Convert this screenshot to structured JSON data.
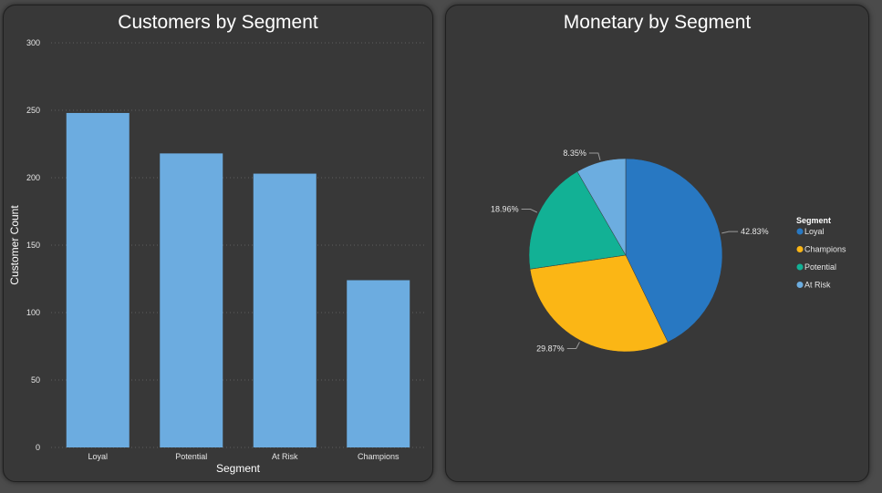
{
  "chart_data": [
    {
      "type": "bar",
      "title": "Customers by Segment",
      "xlabel": "Segment",
      "ylabel": "Customer Count",
      "categories": [
        "Loyal",
        "Potential",
        "At Risk",
        "Champions"
      ],
      "values": [
        248,
        218,
        203,
        124
      ],
      "ylim": [
        0,
        300
      ],
      "yticks": [
        "0",
        "50",
        "100",
        "150",
        "200",
        "250",
        "300"
      ],
      "grid": true,
      "bar_color": "#6cace0"
    },
    {
      "type": "pie",
      "title": "Monetary by Segment",
      "legend_title": "Segment",
      "legend_position": "right",
      "slices": [
        {
          "label": "Loyal",
          "value": 42.83,
          "display": "42.83%",
          "color": "#2878c2"
        },
        {
          "label": "Champions",
          "value": 29.87,
          "display": "29.87%",
          "color": "#fbb615"
        },
        {
          "label": "Potential",
          "value": 18.96,
          "display": "18.96%",
          "color": "#12b195"
        },
        {
          "label": "At Risk",
          "value": 8.35,
          "display": "8.35%",
          "color": "#6cade0"
        }
      ]
    }
  ]
}
